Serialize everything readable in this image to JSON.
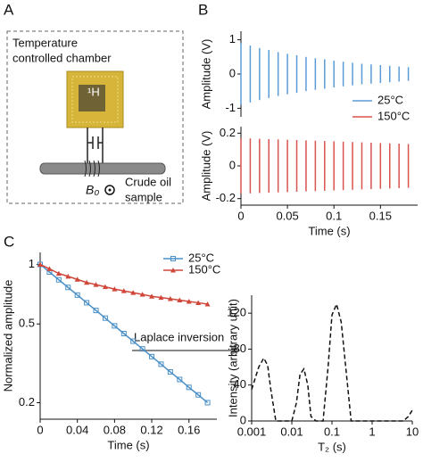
{
  "panel_labels": [
    "A",
    "B",
    "C"
  ],
  "diagram": {
    "chamber": [
      "Temperature",
      "controlled chamber"
    ],
    "nucleus": "¹H",
    "field": "B₀",
    "sample": [
      "Crude oil",
      "sample"
    ]
  },
  "chart_data": [
    {
      "type": "stem",
      "ylabel": "Amplitude (V)",
      "x": [
        0,
        0.01,
        0.02,
        0.03,
        0.04,
        0.05,
        0.06,
        0.07,
        0.08,
        0.09,
        0.1,
        0.11,
        0.12,
        0.13,
        0.14,
        0.15,
        0.16,
        0.17,
        0.18
      ],
      "series": [
        {
          "name": "25°C",
          "color": "#5b9bd5",
          "values": [
            0.9,
            0.83,
            0.76,
            0.7,
            0.64,
            0.59,
            0.55,
            0.5,
            0.46,
            0.43,
            0.39,
            0.36,
            0.33,
            0.3,
            0.28,
            0.26,
            0.24,
            0.22,
            0.2
          ]
        }
      ],
      "xlim": [
        0,
        0.19
      ],
      "ylim": [
        -1.25,
        1.25
      ],
      "yticks": [
        -1,
        0,
        1
      ]
    },
    {
      "type": "stem",
      "ylabel": "Amplitude (V)",
      "xlabel": "Time (s)",
      "x": [
        0,
        0.01,
        0.02,
        0.03,
        0.04,
        0.05,
        0.06,
        0.07,
        0.08,
        0.09,
        0.1,
        0.11,
        0.12,
        0.13,
        0.14,
        0.15,
        0.16,
        0.17,
        0.18
      ],
      "series": [
        {
          "name": "150°C",
          "color": "#d9534f",
          "values": [
            0.17,
            0.168,
            0.166,
            0.164,
            0.162,
            0.16,
            0.158,
            0.156,
            0.154,
            0.152,
            0.15,
            0.148,
            0.146,
            0.144,
            0.142,
            0.14,
            0.138,
            0.136,
            0.134
          ]
        }
      ],
      "xlim": [
        0,
        0.19
      ],
      "ylim": [
        -0.24,
        0.24
      ],
      "yticks": [
        -0.2,
        0,
        0.2
      ],
      "xticks": [
        0,
        0.05,
        0.1,
        0.15
      ]
    },
    {
      "type": "line",
      "ylabel": "Normalized amplitude",
      "xlabel": "Time (s)",
      "annotation": "Laplace inversion",
      "yscale": "log",
      "x": [
        0,
        0.01,
        0.02,
        0.03,
        0.04,
        0.05,
        0.06,
        0.07,
        0.08,
        0.09,
        0.1,
        0.11,
        0.12,
        0.13,
        0.14,
        0.15,
        0.16,
        0.17,
        0.18
      ],
      "series": [
        {
          "name": "25°C",
          "color": "#4a90c8",
          "marker": "square",
          "values": [
            1,
            0.915,
            0.836,
            0.765,
            0.7,
            0.64,
            0.585,
            0.535,
            0.489,
            0.447,
            0.409,
            0.374,
            0.342,
            0.313,
            0.286,
            0.262,
            0.239,
            0.219,
            0.2
          ]
        },
        {
          "name": "150°C",
          "color": "#d0473a",
          "marker": "triangle",
          "values": [
            1,
            0.95,
            0.9,
            0.87,
            0.84,
            0.81,
            0.79,
            0.77,
            0.75,
            0.735,
            0.72,
            0.705,
            0.69,
            0.68,
            0.67,
            0.66,
            0.65,
            0.64,
            0.63
          ]
        }
      ],
      "xlim": [
        0,
        0.19
      ],
      "ylim": [
        0.165,
        1.15
      ],
      "xticks": [
        0,
        0.04,
        0.08,
        0.12,
        0.16
      ],
      "yticks": [
        0.2,
        0.5,
        1
      ]
    },
    {
      "type": "line",
      "ylabel": "Intensity (arbitrary unit)",
      "xlabel": "T₂ (s)",
      "xscale": "log",
      "dashed": true,
      "x": [
        0.001,
        0.0015,
        0.002,
        0.0025,
        0.003,
        0.004,
        0.006,
        0.01,
        0.013,
        0.016,
        0.02,
        0.025,
        0.03,
        0.04,
        0.06,
        0.08,
        0.1,
        0.13,
        0.17,
        0.22,
        0.3,
        0.5,
        1,
        3,
        6,
        8,
        10
      ],
      "series": [
        {
          "color": "#111111",
          "values": [
            35,
            60,
            70,
            62,
            35,
            0,
            0,
            0,
            20,
            52,
            58,
            40,
            5,
            0,
            0,
            60,
            118,
            130,
            110,
            60,
            0,
            0,
            0,
            0,
            0,
            5,
            12
          ]
        }
      ],
      "xlim": [
        0.001,
        10
      ],
      "ylim": [
        0,
        140
      ],
      "xticks": [
        0.001,
        0.01,
        0.1,
        1,
        10
      ],
      "yticks": [
        0,
        40,
        80,
        120
      ]
    }
  ]
}
